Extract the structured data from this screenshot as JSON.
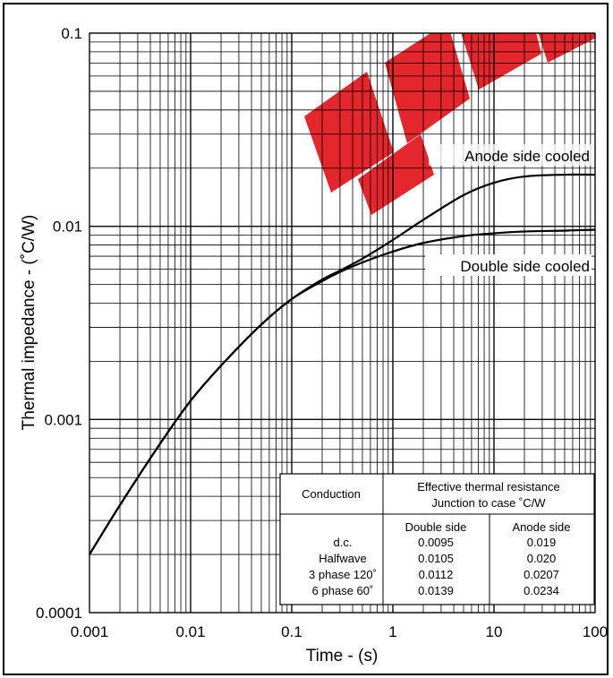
{
  "colors": {
    "line": "#000000",
    "grid": "#000000",
    "watermark": "#e11b22"
  },
  "chart_data": {
    "type": "line",
    "xscale": "log",
    "yscale": "log",
    "xlabel": "Time - (s)",
    "ylabel": "Thermal impedance - (˚C/W)",
    "xlim": [
      0.001,
      100
    ],
    "ylim": [
      0.0001,
      0.1
    ],
    "grid": true,
    "x_ticks": [
      "0.001",
      "0.01",
      "0.1",
      "1",
      "10",
      "100"
    ],
    "y_ticks": [
      "0.0001",
      "0.001",
      "0.01",
      "0.1"
    ],
    "series": [
      {
        "name": "Anode side cooled",
        "x": [
          0.001,
          0.002,
          0.005,
          0.01,
          0.02,
          0.05,
          0.1,
          0.2,
          0.3,
          0.5,
          1,
          2,
          5,
          10,
          20,
          50,
          100
        ],
        "y": [
          0.0002,
          0.00036,
          0.00075,
          0.00125,
          0.0019,
          0.0031,
          0.0042,
          0.0053,
          0.0059,
          0.0068,
          0.0085,
          0.0108,
          0.0145,
          0.0168,
          0.0181,
          0.0185,
          0.0185
        ]
      },
      {
        "name": "Double side cooled",
        "x": [
          0.001,
          0.002,
          0.005,
          0.01,
          0.02,
          0.05,
          0.1,
          0.2,
          0.3,
          0.5,
          1,
          2,
          5,
          10,
          20,
          50,
          100
        ],
        "y": [
          0.0002,
          0.00036,
          0.00075,
          0.00125,
          0.0019,
          0.0031,
          0.0042,
          0.0052,
          0.0058,
          0.0065,
          0.0074,
          0.0082,
          0.0089,
          0.0092,
          0.0094,
          0.0095,
          0.0096
        ]
      }
    ],
    "table": {
      "head_col1": "Conduction",
      "head_col2_line1": "Effective thermal resistance",
      "head_col2_line2": "Junction to case ˚C/W",
      "sub_double": "Double side",
      "sub_anode": "Anode side",
      "rows": [
        {
          "conduction": "d.c.",
          "double": "0.0095",
          "anode": "0.019"
        },
        {
          "conduction": "Halfwave",
          "double": "0.0105",
          "anode": "0.020"
        },
        {
          "conduction": "3 phase 120˚",
          "double": "0.0112",
          "anode": "0.0207"
        },
        {
          "conduction": "6 phase 60˚",
          "double": "0.0139",
          "anode": "0.0234"
        }
      ]
    }
  }
}
